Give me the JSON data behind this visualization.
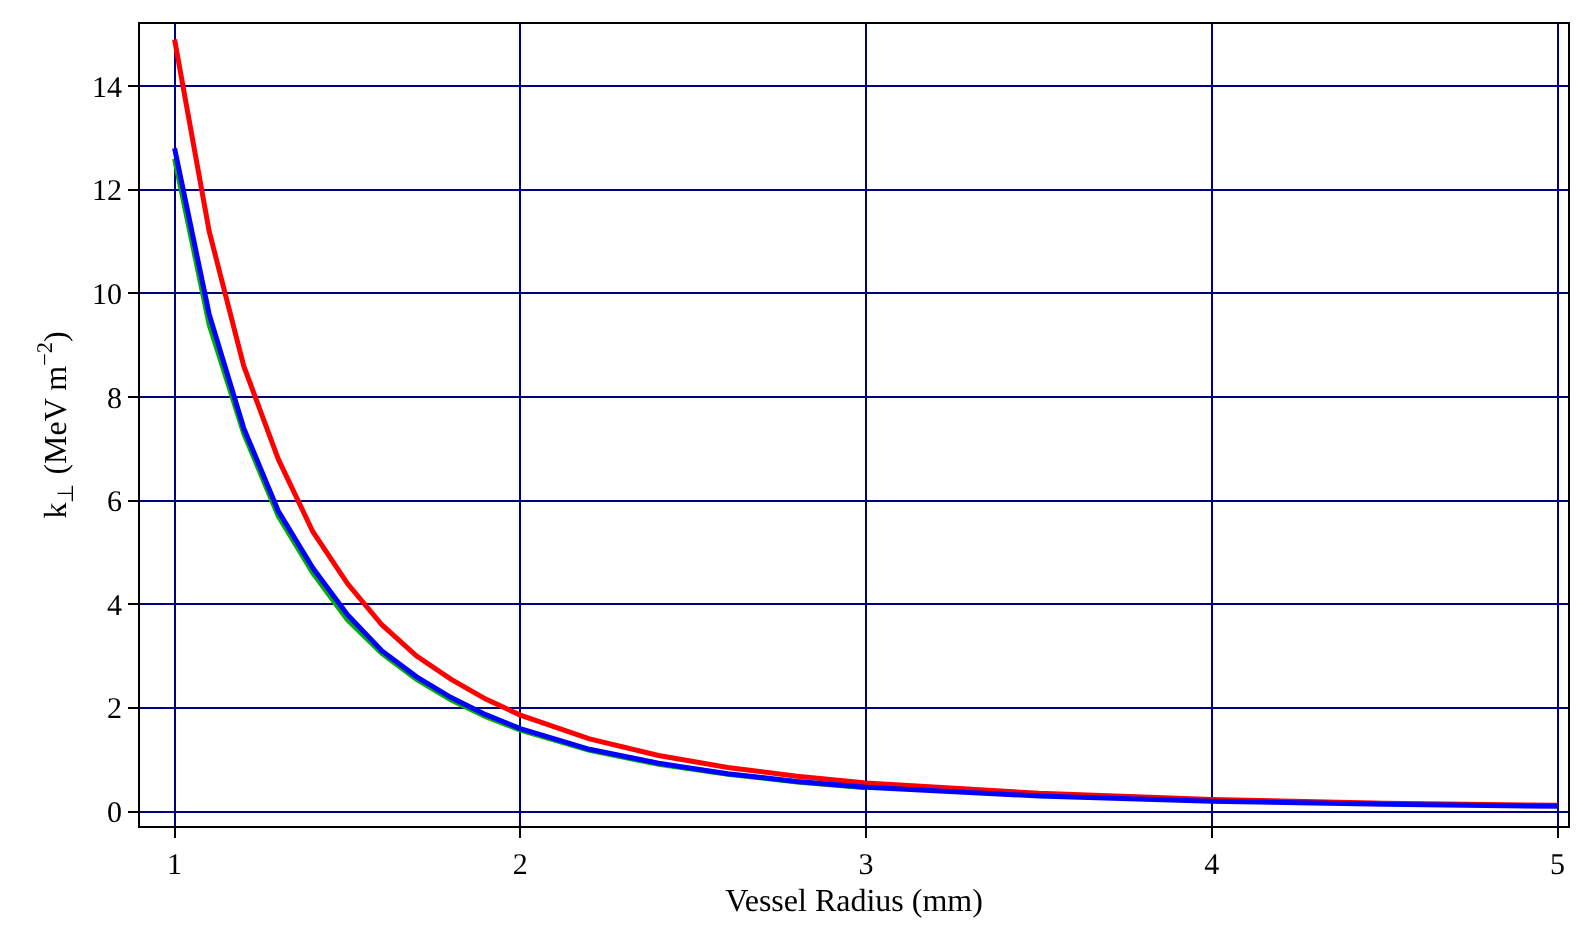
{
  "chart_data": {
    "type": "line",
    "xlabel": "Vessel Radius (mm)",
    "ylabel": "k$_{⊥}$ (MeV m$^{−2}$)",
    "x": [
      1,
      1.1,
      1.2,
      1.3,
      1.4,
      1.5,
      1.6,
      1.7,
      1.8,
      1.9,
      2,
      2.2,
      2.4,
      2.6,
      2.8,
      3,
      3.5,
      4,
      4.5,
      5
    ],
    "series": [
      {
        "color": "#ff0000",
        "values": [
          14.9,
          11.2,
          8.6,
          6.8,
          5.4,
          4.4,
          3.6,
          3.0,
          2.55,
          2.17,
          1.86,
          1.4,
          1.08,
          0.85,
          0.68,
          0.55,
          0.35,
          0.23,
          0.16,
          0.12
        ]
      },
      {
        "color": "#00b000",
        "values": [
          12.6,
          9.4,
          7.3,
          5.7,
          4.6,
          3.7,
          3.05,
          2.55,
          2.15,
          1.83,
          1.57,
          1.18,
          0.91,
          0.72,
          0.57,
          0.46,
          null,
          null,
          null,
          null
        ]
      },
      {
        "color": "#0000ff",
        "values": [
          12.8,
          9.6,
          7.4,
          5.8,
          4.7,
          3.8,
          3.1,
          2.6,
          2.2,
          1.87,
          1.6,
          1.2,
          0.93,
          0.73,
          0.58,
          0.47,
          0.3,
          0.2,
          0.14,
          0.1
        ]
      }
    ],
    "xlim": [
      0.9,
      5.03
    ],
    "ylim": [
      -0.28,
      15.2
    ],
    "xticks": [
      1,
      2,
      3,
      4,
      5
    ],
    "yticks": [
      0,
      2,
      4,
      6,
      8,
      10,
      12,
      14
    ],
    "grid": true,
    "legend": false,
    "marker": "none",
    "line_style": "solid"
  }
}
